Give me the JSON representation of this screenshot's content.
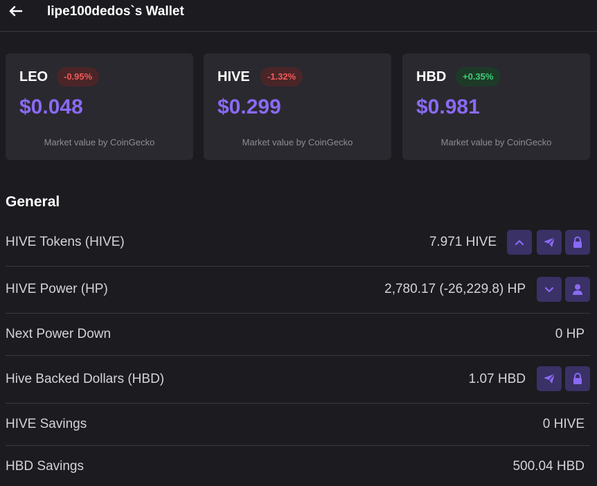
{
  "header": {
    "title": "lipe100dedos`s Wallet"
  },
  "cards": [
    {
      "symbol": "LEO",
      "change": "-0.95%",
      "price": "$0.048",
      "source": "Market value by CoinGecko"
    },
    {
      "symbol": "HIVE",
      "change": "-1.32%",
      "price": "$0.299",
      "source": "Market value by CoinGecko"
    },
    {
      "symbol": "HBD",
      "change": "+0.35%",
      "price": "$0.981",
      "source": "Market value by CoinGecko"
    }
  ],
  "general": {
    "title": "General",
    "rows": [
      {
        "label": "HIVE Tokens (HIVE)",
        "value": "7.971 HIVE",
        "actions": [
          "chevron-up-icon",
          "send-icon",
          "lock-icon"
        ]
      },
      {
        "label": "HIVE Power (HP)",
        "value": "2,780.17 (-26,229.8) HP",
        "actions": [
          "chevron-down-icon",
          "user-icon"
        ]
      },
      {
        "label": "Next Power Down",
        "value": "0 HP",
        "actions": []
      },
      {
        "label": "Hive Backed Dollars (HBD)",
        "value": "1.07 HBD",
        "actions": [
          "send-icon",
          "lock-icon"
        ]
      },
      {
        "label": "HIVE Savings",
        "value": "0 HIVE",
        "actions": []
      },
      {
        "label": "HBD Savings",
        "value": "500.04 HBD",
        "actions": []
      }
    ]
  },
  "colors": {
    "background": "#1c1b20",
    "card": "#2a292f",
    "accent": "#8a6af5",
    "button": "#3a3166",
    "negative": "#f05a5a",
    "positive": "#3ecf72"
  }
}
